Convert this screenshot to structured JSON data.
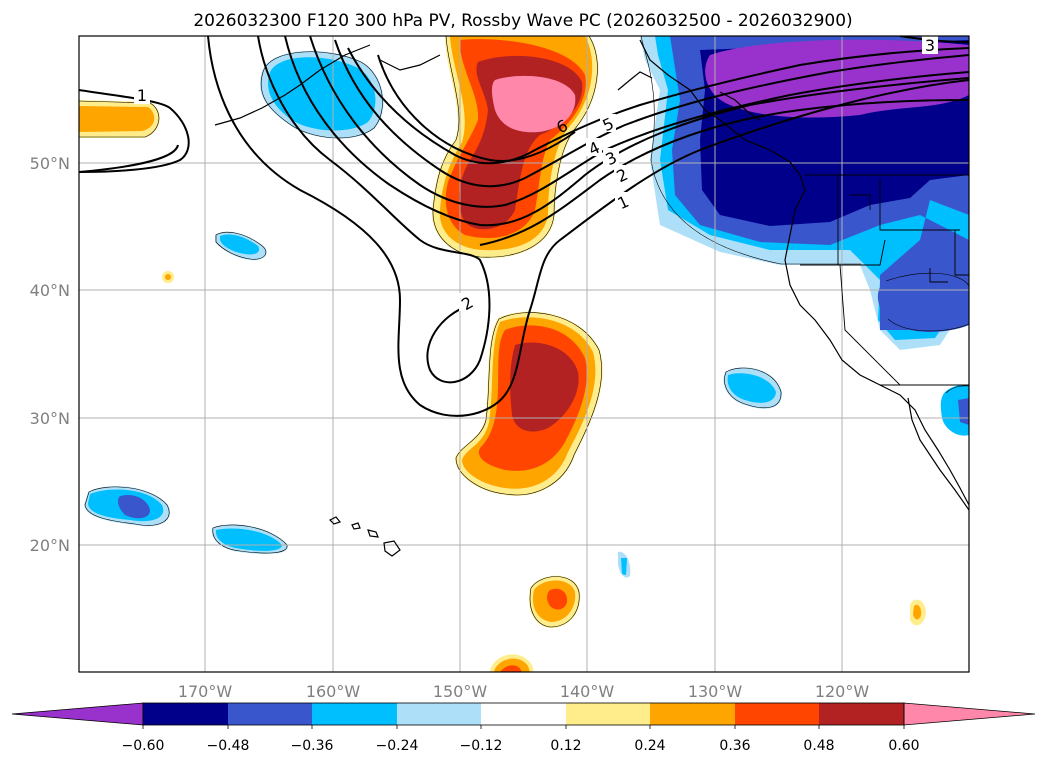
{
  "title": "2026032300 F120 300 hPa PV, Rossby Wave PC (2026032500 - 2026032900)",
  "lat_labels": [
    "50°N",
    "40°N",
    "30°N",
    "20°N"
  ],
  "lon_labels": [
    "170°W",
    "160°W",
    "150°W",
    "140°W",
    "130°W",
    "120°W"
  ],
  "colorbar": {
    "ticks": [
      "−0.60",
      "−0.48",
      "−0.36",
      "−0.24",
      "−0.12",
      "0.12",
      "0.24",
      "0.36",
      "0.48",
      "0.60"
    ],
    "colors": [
      "#9932cc",
      "#00008b",
      "#3a56cc",
      "#00bfff",
      "#ade0f8",
      "#ffffff",
      "#ffec8b",
      "#ffa500",
      "#ff4500",
      "#b22222",
      "#ff88aa"
    ]
  },
  "contour_labels": {
    "c1_west": "1",
    "c1_east": "1",
    "c2": "2",
    "c2_low": "2",
    "c3": "3",
    "c4": "4",
    "c5": "5",
    "c6": "6",
    "c3_ne": "3"
  }
}
